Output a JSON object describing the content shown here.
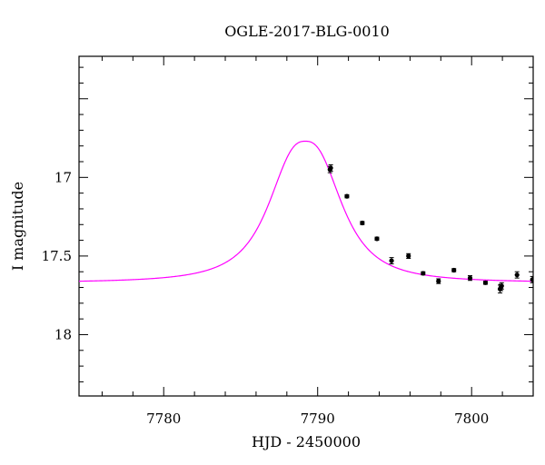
{
  "chart_data": {
    "type": "scatter",
    "title": "OGLE-2017-BLG-0010",
    "xlabel": "HJD - 2450000",
    "ylabel": "I magnitude",
    "xlim": [
      7774.5,
      7804
    ],
    "ylim": [
      18.39,
      16.23
    ],
    "y_inverted": true,
    "grid": false,
    "x_ticks": [
      7780,
      7790,
      7800
    ],
    "x_tick_labels": [
      "7780",
      "7790",
      "7800"
    ],
    "y_ticks": [
      17,
      17.5,
      18
    ],
    "y_tick_labels": [
      "17",
      "17.5",
      "18"
    ],
    "colors": {
      "model": "#ff00ff",
      "points": "#000000"
    },
    "model_curve": {
      "peak_x": 7789.2,
      "peak_mag": 16.77,
      "baseline_mag": 17.67
    },
    "series": [
      {
        "x": [
          7790.8,
          7790.85,
          7791.9,
          7792.9,
          7793.85,
          7794.8,
          7795.9,
          7796.85,
          7797.85,
          7798.85,
          7799.9,
          7800.9,
          7801.85,
          7801.9,
          7801.95,
          7802.95,
          7803.95
        ],
        "y": [
          16.95,
          16.94,
          17.12,
          17.29,
          17.39,
          17.53,
          17.5,
          17.61,
          17.66,
          17.59,
          17.64,
          17.67,
          17.71,
          17.7,
          17.69,
          17.62,
          17.65
        ],
        "yerr": [
          0.02,
          0.02,
          0.01,
          0.01,
          0.01,
          0.02,
          0.015,
          0.01,
          0.015,
          0.01,
          0.015,
          0.01,
          0.025,
          0.02,
          0.02,
          0.02,
          0.02
        ]
      }
    ]
  }
}
